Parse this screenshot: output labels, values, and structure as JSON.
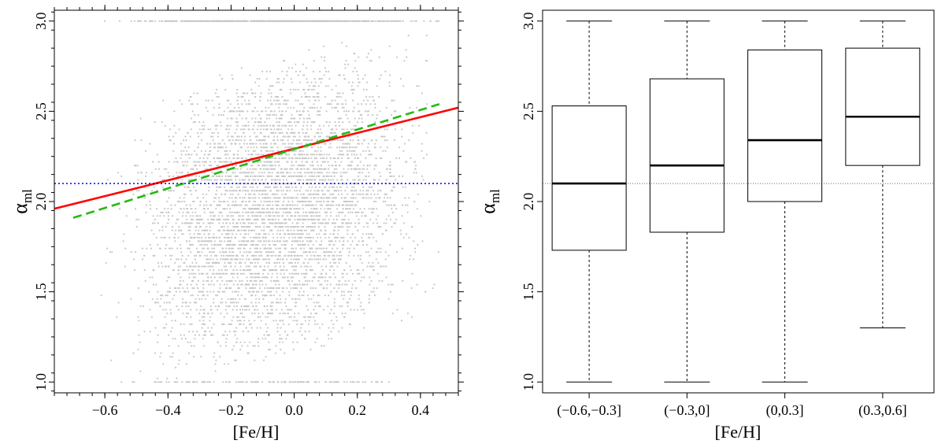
{
  "chart_data": [
    {
      "type": "scatter",
      "panel": "left",
      "xlabel": "[Fe/H]",
      "ylabel_main": "α",
      "ylabel_sub": "ml",
      "xlim": [
        -0.76,
        0.52
      ],
      "ylim": [
        0.94,
        3.06
      ],
      "x_ticks": [
        -0.6,
        -0.4,
        -0.2,
        0.0,
        0.2,
        0.4
      ],
      "x_tick_labels": [
        "−0.6",
        "−0.4",
        "−0.2",
        "0.0",
        "0.2",
        "0.4"
      ],
      "y_ticks": [
        1.0,
        1.5,
        2.0,
        2.5,
        3.0
      ],
      "y_tick_labels": [
        "1.0",
        "1.5",
        "2.0",
        "2.5",
        "3.0"
      ],
      "scatter": {
        "color": "#c8c8c8",
        "n_points": 6000,
        "x_range": [
          -0.7,
          0.46
        ],
        "y_range": [
          1.0,
          3.0
        ],
        "y_levels_step": 0.02
      },
      "lines": [
        {
          "name": "linear fit",
          "color": "#ff0000",
          "style": "solid",
          "x": [
            -0.76,
            0.52
          ],
          "y": [
            1.96,
            2.52
          ]
        },
        {
          "name": "second fit",
          "color": "#22bb11",
          "style": "dashed",
          "x": [
            -0.7,
            0.46
          ],
          "y": [
            1.91,
            2.54
          ]
        },
        {
          "name": "reference alpha",
          "color": "#0000ff",
          "style": "dotted",
          "x": [
            -0.76,
            0.52
          ],
          "y": [
            2.1,
            2.1
          ]
        }
      ]
    },
    {
      "type": "box",
      "panel": "right",
      "xlabel": "[Fe/H]",
      "ylabel_main": "α",
      "ylabel_sub": "ml",
      "ylim": [
        0.94,
        3.06
      ],
      "y_ticks": [
        1.0,
        1.5,
        2.0,
        2.5,
        3.0
      ],
      "y_tick_labels": [
        "1.0",
        "1.5",
        "2.0",
        "2.5",
        "3.0"
      ],
      "reference_line": 2.1,
      "boxes": [
        {
          "label": "(−0.6,−0.3]",
          "min": 1.0,
          "q1": 1.73,
          "median": 2.1,
          "q3": 2.53,
          "max": 3.0
        },
        {
          "label": "(−0.3,0]",
          "min": 1.0,
          "q1": 1.83,
          "median": 2.2,
          "q3": 2.68,
          "max": 3.0
        },
        {
          "label": "(0,0.3]",
          "min": 1.0,
          "q1": 2.0,
          "median": 2.34,
          "q3": 2.84,
          "max": 3.0
        },
        {
          "label": "(0.3,0.6]",
          "min": 1.3,
          "q1": 2.2,
          "median": 2.47,
          "q3": 2.85,
          "max": 3.0
        }
      ]
    }
  ]
}
